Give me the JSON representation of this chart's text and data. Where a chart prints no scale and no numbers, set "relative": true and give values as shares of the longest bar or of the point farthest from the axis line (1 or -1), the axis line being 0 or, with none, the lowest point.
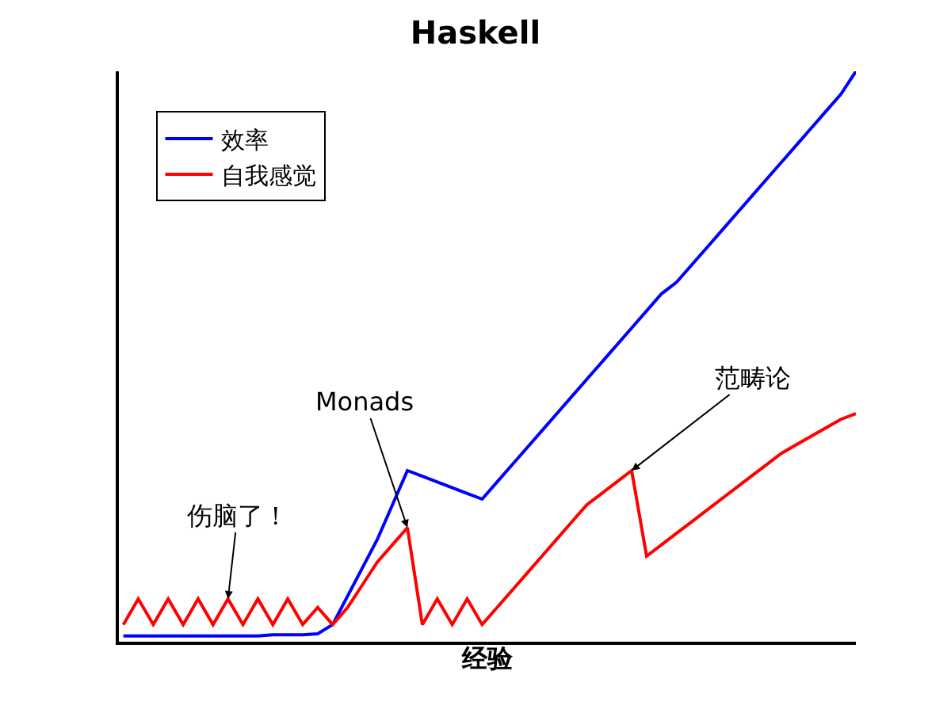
{
  "chart_data": {
    "type": "line",
    "title": "Haskell",
    "xlabel": "经验",
    "relative": true,
    "legend": "top left",
    "grid": false,
    "marker": "none",
    "line_style": "solid",
    "categories": [
      null,
      null,
      null,
      null,
      null,
      null,
      null,
      null,
      null,
      null,
      null,
      null,
      null,
      null,
      null,
      null,
      null,
      null,
      null,
      null,
      null,
      null,
      null,
      null,
      null,
      null,
      null,
      null,
      null,
      null,
      null,
      null,
      null,
      null,
      null,
      null,
      null,
      null,
      null,
      null,
      null,
      null,
      null,
      null,
      null,
      null,
      null,
      null,
      null,
      null
    ],
    "series": [
      {
        "name": "效率",
        "color": "#0000ff",
        "values": [
          0.01,
          0.01,
          0.01,
          0.01,
          0.01,
          0.01,
          0.01,
          0.01,
          0.01,
          0.01,
          0.012,
          0.012,
          0.012,
          0.014,
          0.03,
          0.08,
          0.13,
          0.18,
          0.24,
          0.3,
          0.29,
          0.28,
          0.27,
          0.26,
          0.25,
          0.28,
          0.31,
          0.34,
          0.37,
          0.4,
          0.43,
          0.46,
          0.49,
          0.52,
          0.55,
          0.58,
          0.61,
          0.63,
          0.66,
          0.69,
          0.72,
          0.75,
          0.78,
          0.81,
          0.84,
          0.87,
          0.9,
          0.93,
          0.96,
          1.0
        ]
      },
      {
        "name": "自我感觉",
        "color": "#ff0000",
        "values": [
          0.03,
          0.075,
          0.03,
          0.075,
          0.03,
          0.075,
          0.03,
          0.075,
          0.03,
          0.075,
          0.03,
          0.075,
          0.03,
          0.06,
          0.03,
          0.06,
          0.1,
          0.14,
          0.17,
          0.2,
          0.03,
          0.075,
          0.03,
          0.075,
          0.03,
          0.06,
          0.09,
          0.12,
          0.15,
          0.18,
          0.21,
          0.24,
          0.26,
          0.28,
          0.3,
          0.15,
          0.17,
          0.19,
          0.21,
          0.23,
          0.25,
          0.27,
          0.29,
          0.31,
          0.33,
          0.345,
          0.36,
          0.375,
          0.39,
          0.4
        ]
      }
    ],
    "annotations": [
      "伤脑了！",
      "Monads",
      "范畴论"
    ]
  }
}
